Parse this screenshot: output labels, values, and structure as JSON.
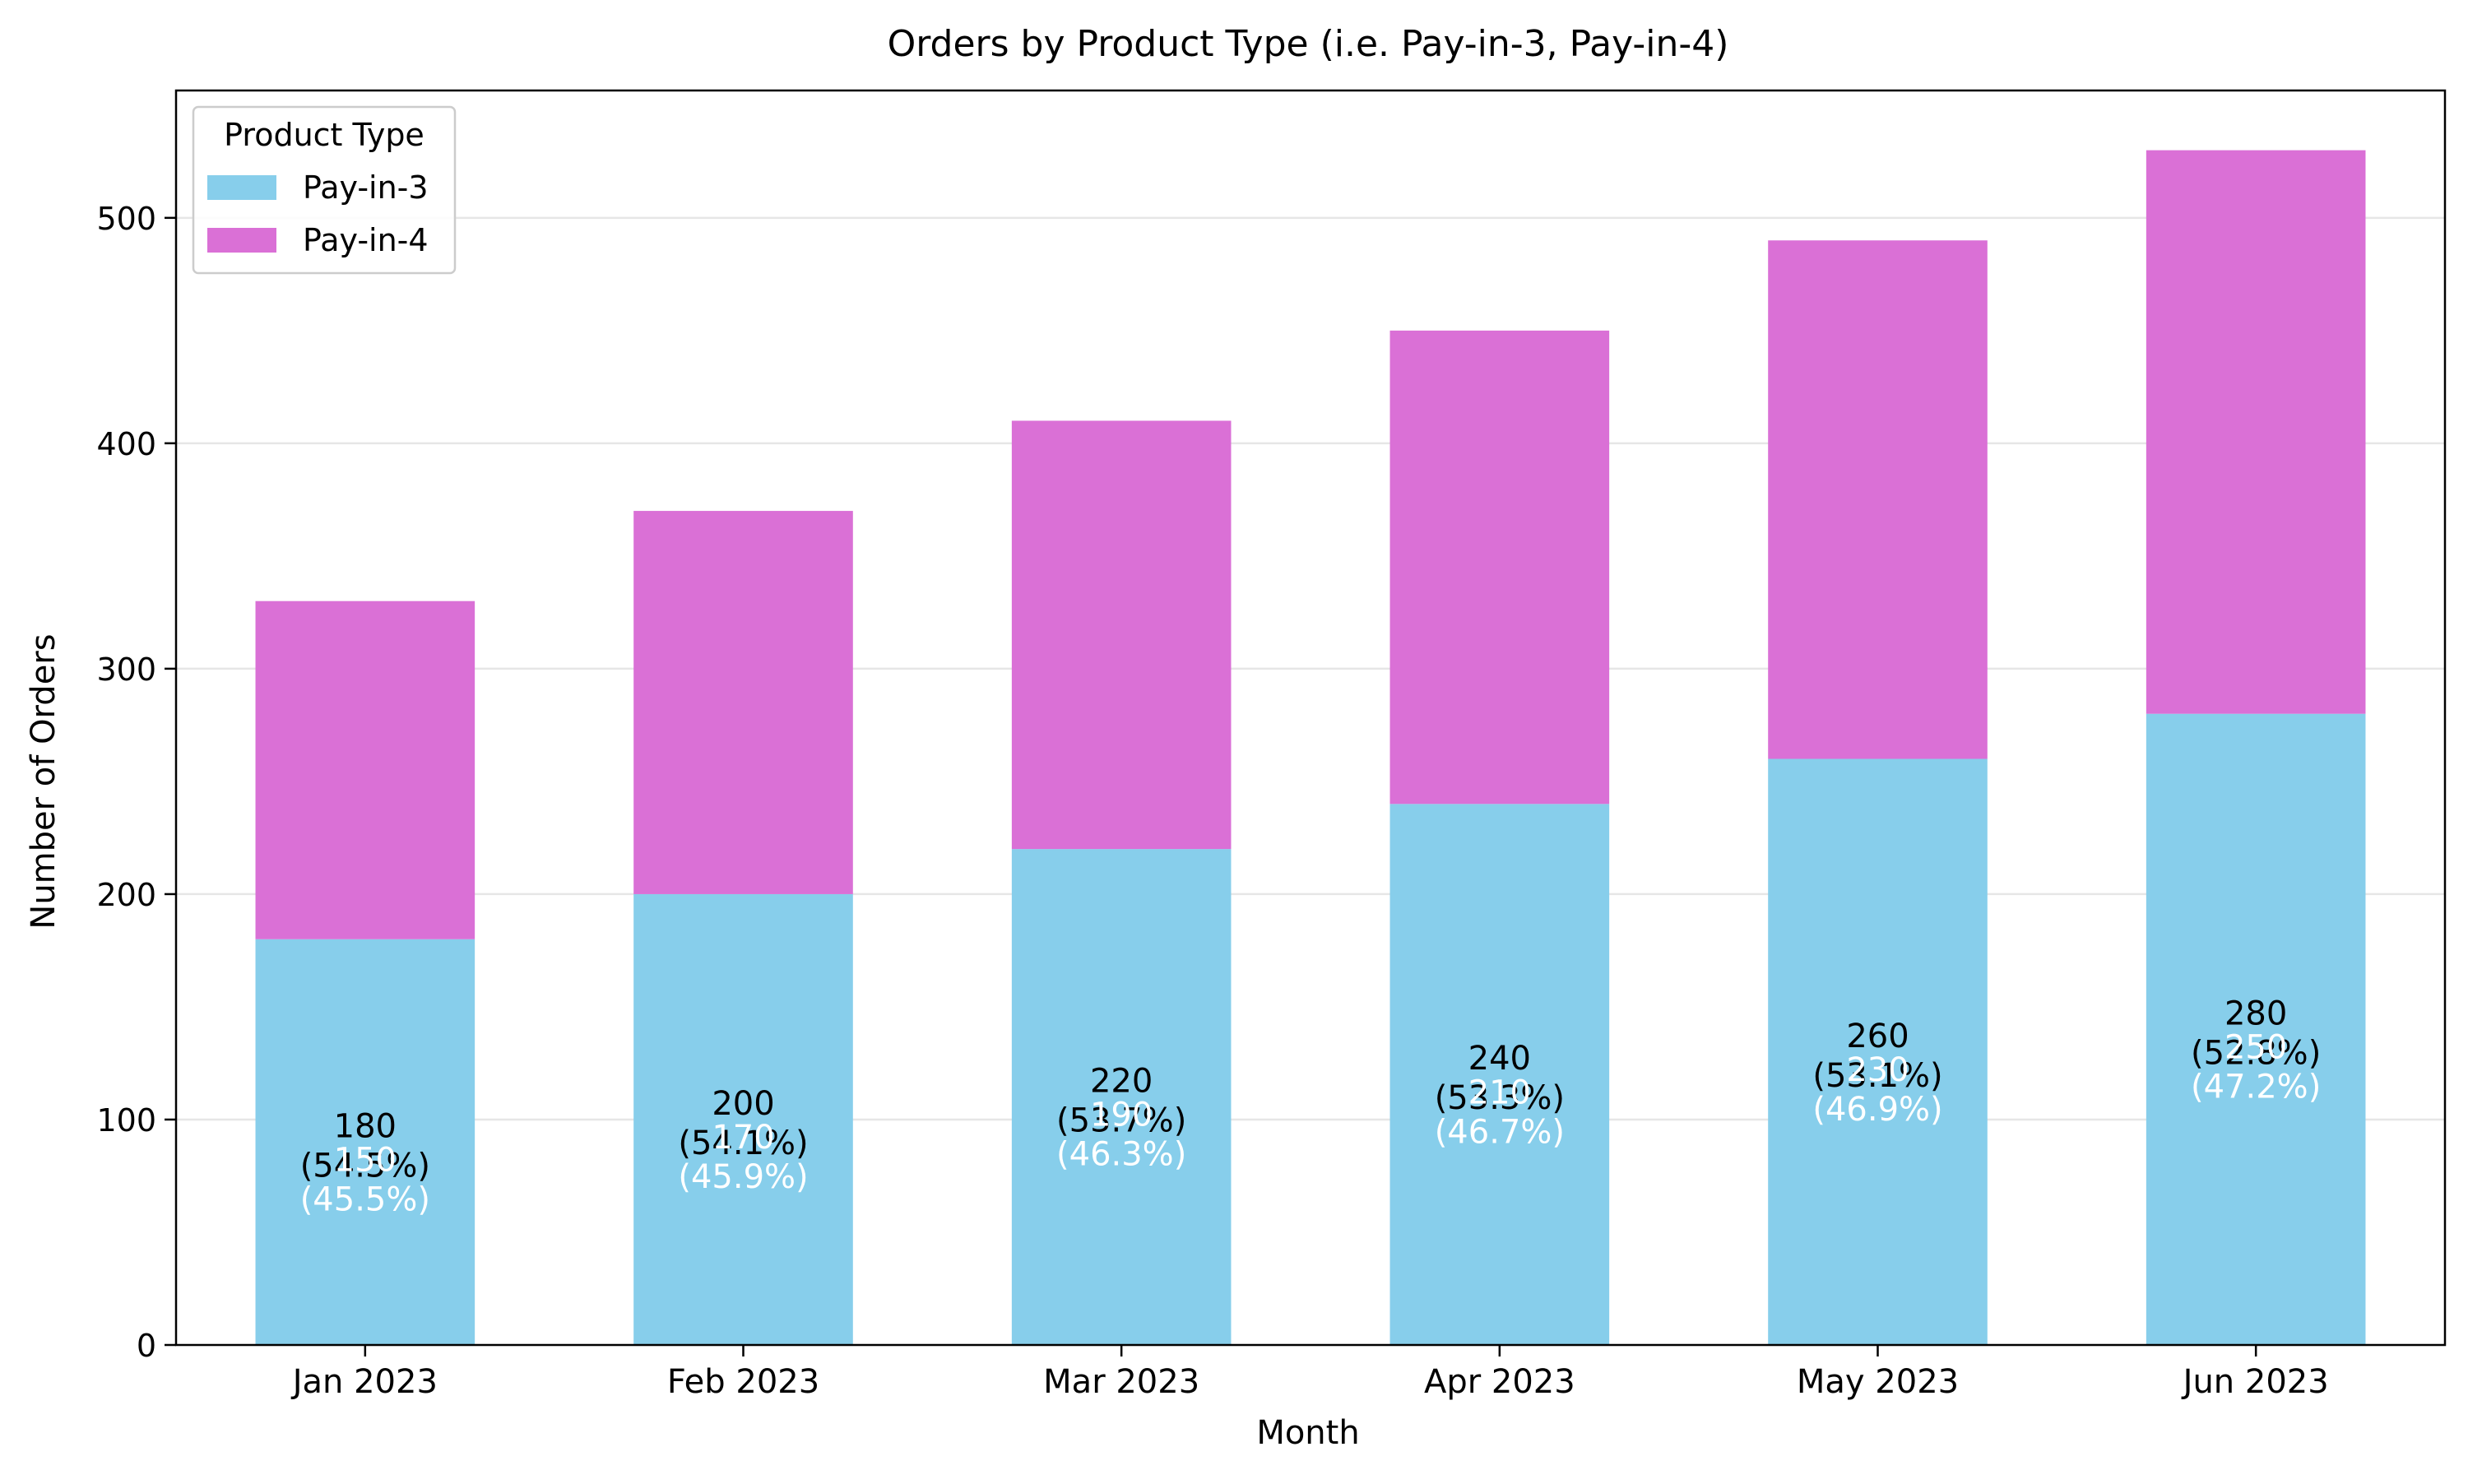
{
  "chart_data": {
    "type": "bar",
    "stacked": true,
    "title": "Orders by Product Type (i.e. Pay-in-3, Pay-in-4)",
    "xlabel": "Month",
    "ylabel": "Number of Orders",
    "categories": [
      "Jan 2023",
      "Feb 2023",
      "Mar 2023",
      "Apr 2023",
      "May 2023",
      "Jun 2023"
    ],
    "series": [
      {
        "name": "Pay-in-3",
        "color": "#87ceeb",
        "label_color": "#000000",
        "values": [
          180,
          200,
          220,
          240,
          260,
          280
        ],
        "percent_labels": [
          "(54.5%)",
          "(54.1%)",
          "(53.7%)",
          "(53.3%)",
          "(53.1%)",
          "(52.8%)"
        ]
      },
      {
        "name": "Pay-in-4",
        "color": "#da70d6",
        "label_color": "#ffffff",
        "values": [
          150,
          170,
          190,
          210,
          230,
          250
        ],
        "percent_labels": [
          "(45.5%)",
          "(45.9%)",
          "(46.3%)",
          "(46.7%)",
          "(46.9%)",
          "(47.2%)"
        ]
      }
    ],
    "ylim": [
      0,
      556.5
    ],
    "yticks": [
      0,
      100,
      200,
      300,
      400,
      500
    ],
    "grid": "y",
    "legend": {
      "title": "Product Type",
      "placement": "top-left"
    }
  }
}
